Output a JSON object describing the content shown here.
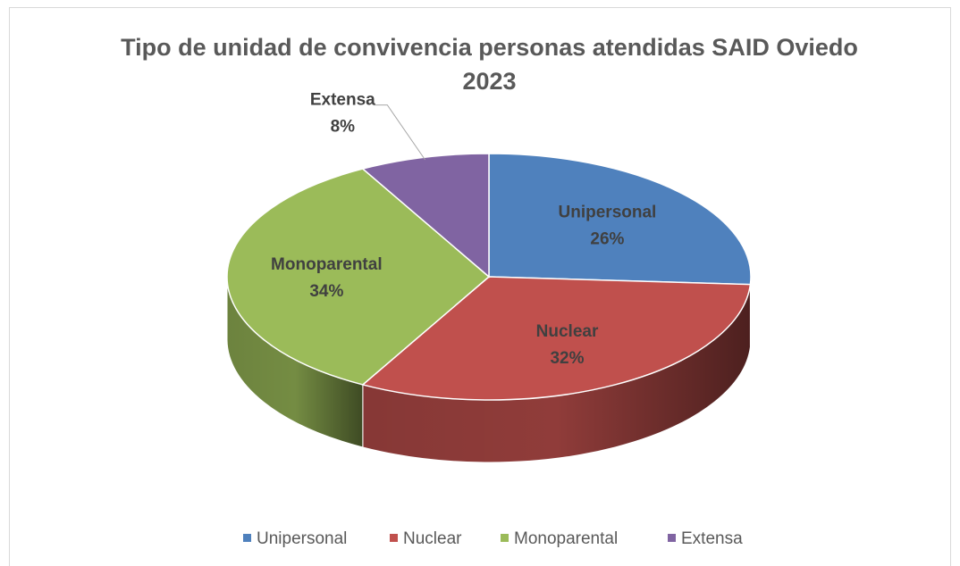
{
  "chart_data": {
    "type": "pie3d",
    "title": "Tipo de unidad de convivencia personas atendidas SAID Oviedo 2023",
    "categories": [
      "Unipersonal",
      "Nuclear",
      "Monoparental",
      "Extensa"
    ],
    "values": [
      26,
      32,
      34,
      8
    ],
    "value_labels": [
      "26%",
      "32%",
      "34%",
      "8%"
    ],
    "colors": [
      "#4f81bd",
      "#c0504d",
      "#9bbb59",
      "#8064a2"
    ],
    "legend": "bottom"
  }
}
